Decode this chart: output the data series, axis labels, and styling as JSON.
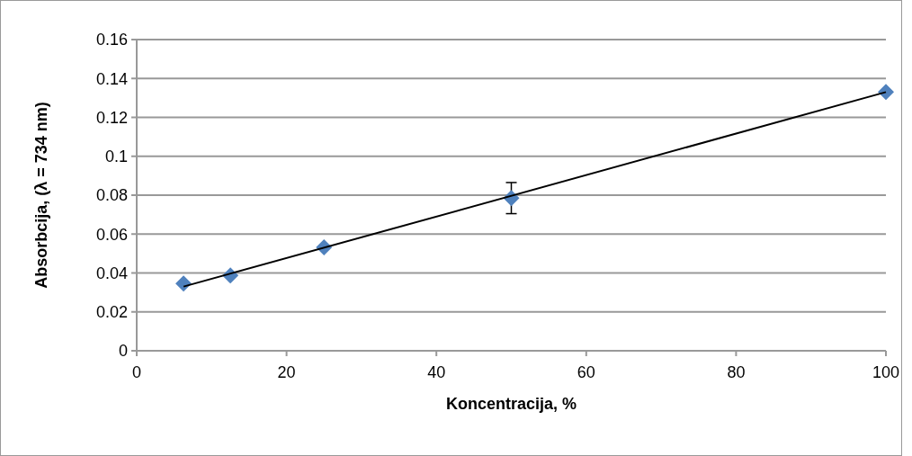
{
  "chart_data": {
    "type": "scatter",
    "xlabel": "Koncentracija, %",
    "ylabel": "Absorbcija, (λ = 734 nm)",
    "xlim": [
      0,
      100
    ],
    "xticks": [
      0,
      20,
      40,
      60,
      80,
      100
    ],
    "ylim": [
      0,
      0.16
    ],
    "yticks": [
      0,
      0.02,
      0.04,
      0.06,
      0.08,
      0.1,
      0.12,
      0.14,
      0.16
    ],
    "grid": "y",
    "series": [
      {
        "color": "#4f81bd",
        "marker": "diamond",
        "x": [
          6.25,
          12.5,
          25,
          50,
          100
        ],
        "values": [
          0.0346,
          0.0387,
          0.0532,
          0.0785,
          0.1331
        ],
        "errors": [
          null,
          null,
          null,
          0.008,
          null
        ]
      },
      {
        "type": "line",
        "color": "#000000",
        "x": [
          6.25,
          100
        ],
        "values": [
          0.033,
          0.133
        ]
      }
    ]
  }
}
